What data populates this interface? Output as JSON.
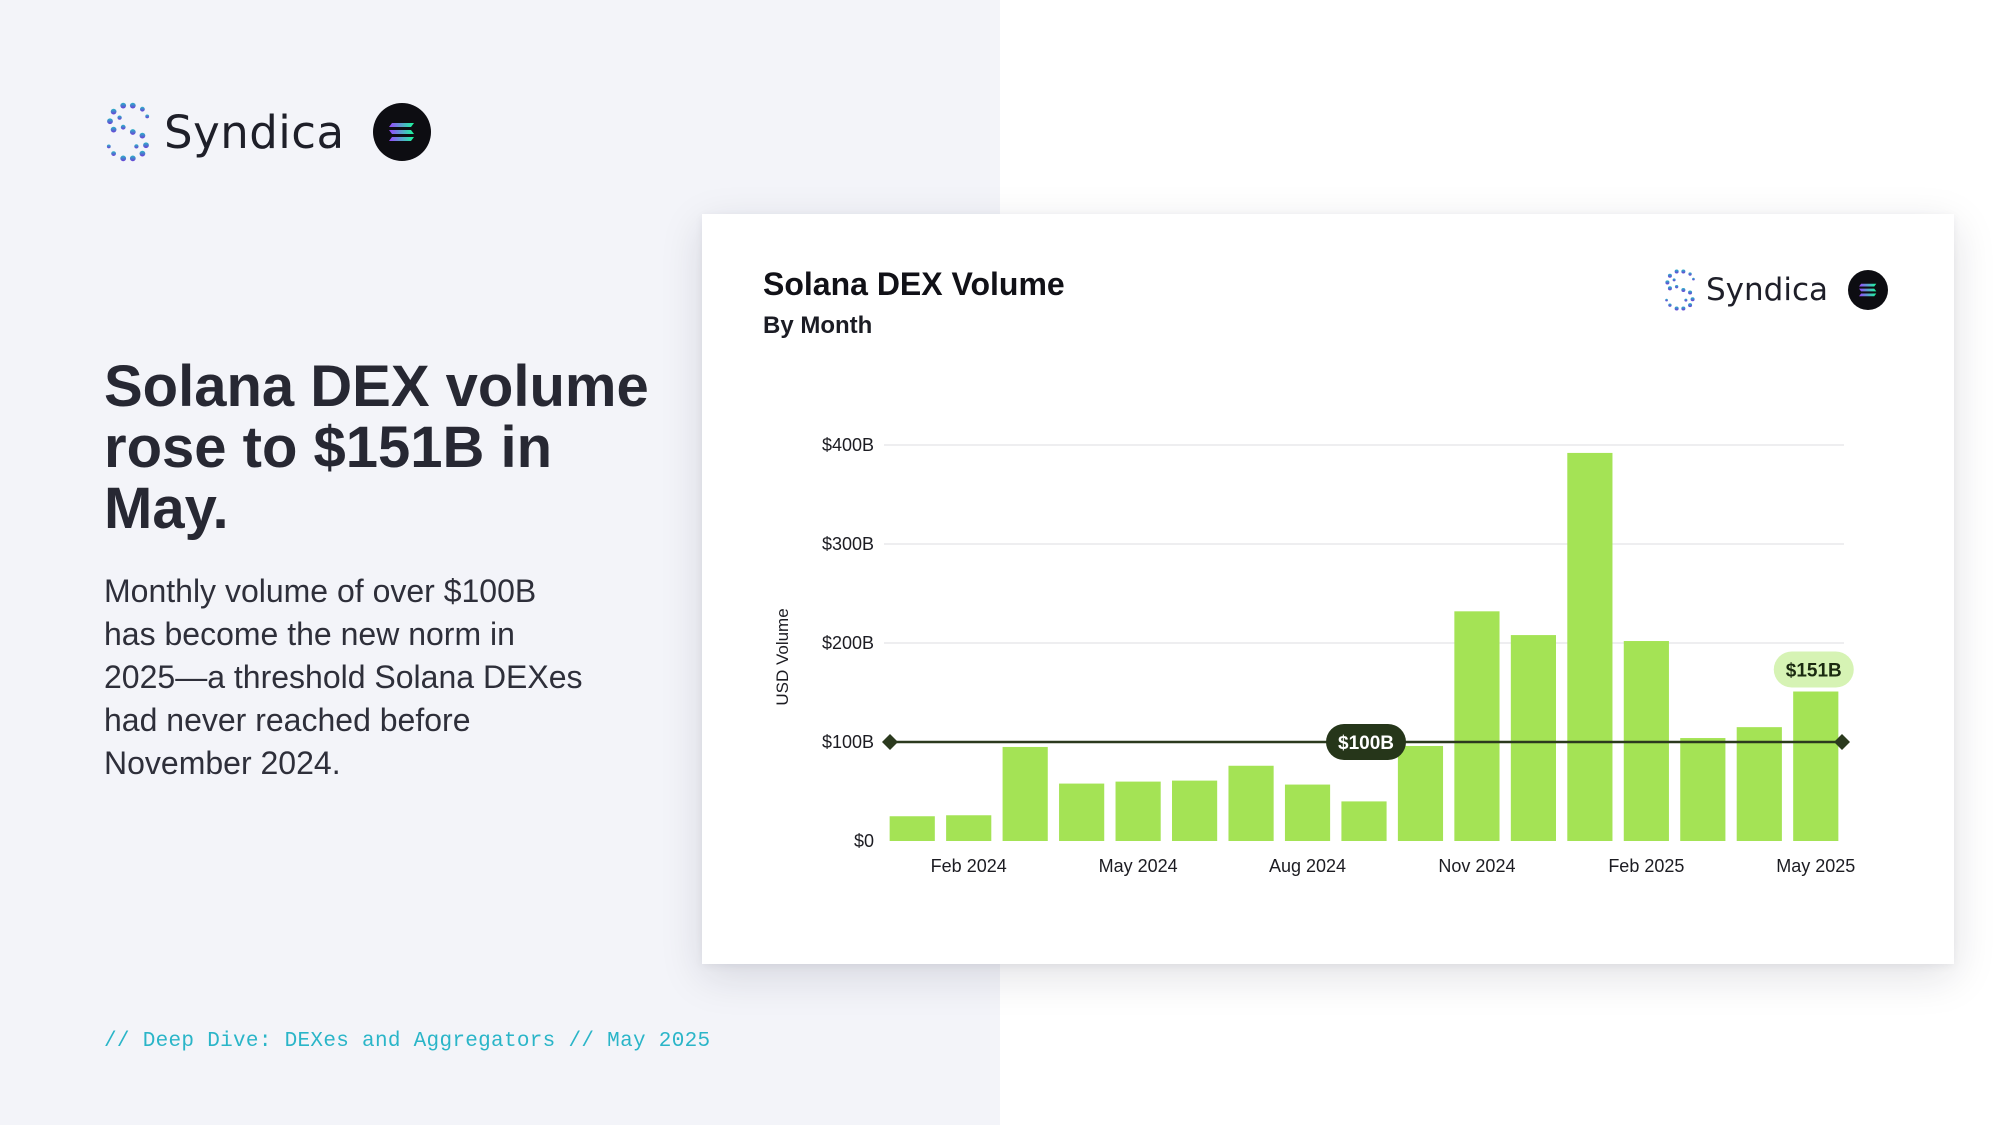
{
  "brand": {
    "name": "Syndica",
    "logo_icon": "syndica-dots-s-icon",
    "partner_icon": "solana-icon",
    "colors": {
      "cyan": "#2ab5c8",
      "purple": "#6b3fd6",
      "accent_green": "#a4e355"
    }
  },
  "headline": "Solana DEX volume rose to $151B in May.",
  "subtext": "Monthly volume of over $100B has become the new norm in 2025—a threshold Solana DEXes had never reached before November 2024.",
  "footer_tag": "// Deep Dive: DEXes and Aggregators // May 2025",
  "card": {
    "title": "Solana DEX Volume",
    "subtitle": "By Month",
    "brand_name": "Syndica"
  },
  "chart_data": {
    "type": "bar",
    "title": "Solana DEX Volume",
    "subtitle": "By Month",
    "xlabel": "",
    "ylabel": "USD Volume",
    "ylim": [
      0,
      400
    ],
    "y_unit": "billion USD",
    "y_ticks": [
      {
        "value": 0,
        "label": "$0"
      },
      {
        "value": 100,
        "label": "$100B"
      },
      {
        "value": 200,
        "label": "$200B"
      },
      {
        "value": 300,
        "label": "$300B"
      },
      {
        "value": 400,
        "label": "$400B"
      }
    ],
    "categories": [
      "Jan 2024",
      "Feb 2024",
      "Mar 2024",
      "Apr 2024",
      "May 2024",
      "Jun 2024",
      "Jul 2024",
      "Aug 2024",
      "Sep 2024",
      "Oct 2024",
      "Nov 2024",
      "Dec 2024",
      "Jan 2025",
      "Feb 2025",
      "Mar 2025",
      "Apr 2025",
      "May 2025"
    ],
    "x_tick_labels": [
      {
        "index": 1,
        "label": "Feb 2024"
      },
      {
        "index": 4,
        "label": "May 2024"
      },
      {
        "index": 7,
        "label": "Aug 2024"
      },
      {
        "index": 10,
        "label": "Nov 2024"
      },
      {
        "index": 13,
        "label": "Feb 2025"
      },
      {
        "index": 16,
        "label": "May 2025"
      }
    ],
    "values": [
      25,
      26,
      95,
      58,
      60,
      61,
      76,
      57,
      40,
      96,
      232,
      208,
      392,
      202,
      104,
      115,
      151
    ],
    "reference_line": {
      "value": 100,
      "label": "$100B"
    },
    "highlight": {
      "index": 16,
      "label": "$151B"
    },
    "grid": true,
    "bar_color": "#a4e355"
  }
}
